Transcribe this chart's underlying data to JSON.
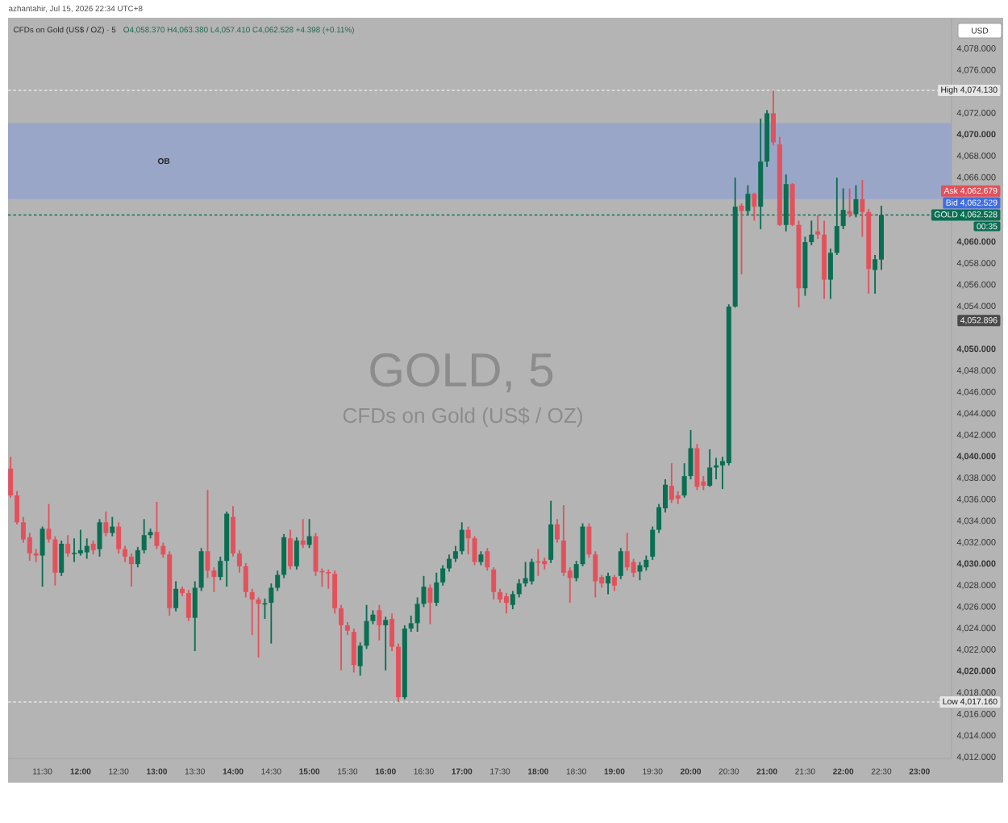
{
  "chart_data": {
    "type": "candlestick",
    "title": "CFDs on Gold (US$ / OZ) · 5",
    "subtitle": "O4,058.370 H4,063.380 L4,057.410 C4,062.528 +4.398 (+0.11%)",
    "ylabel": "USD",
    "annotations": [
      "azhantahir, Jul 15, 2026 22:34 UTC+8",
      "GOLD, 5",
      "CFDs on Gold (US$ / OZ)",
      "00:35",
      "Ask 4,062.679",
      "Bid 4,062.529",
      "4,052.896"
    ],
    "x": [
      11.0833,
      11.1667,
      11.25,
      11.3333,
      11.4167,
      11.5,
      11.5833,
      11.6667,
      11.75,
      11.8333,
      11.9167,
      12,
      12.0833,
      12.1667,
      12.25,
      12.3333,
      12.4167,
      12.5,
      12.5833,
      12.6667,
      12.75,
      12.8333,
      12.9167,
      13,
      13.0833,
      13.1667,
      13.25,
      13.3333,
      13.4167,
      13.5,
      13.5833,
      13.6667,
      13.75,
      13.8333,
      13.9167,
      14,
      14.0833,
      14.1667,
      14.25,
      14.3333,
      14.4167,
      14.5,
      14.5833,
      14.6667,
      14.75,
      14.8333,
      14.9167,
      15,
      15.0833,
      15.1667,
      15.25,
      15.3333,
      15.4167,
      15.5,
      15.5833,
      15.6667,
      15.75,
      15.8333,
      15.9167,
      16,
      16.0833,
      16.1667,
      16.25,
      16.3333,
      16.4167,
      16.5,
      16.5833,
      16.6667,
      16.75,
      16.8333,
      16.9167,
      17,
      17.0833,
      17.1667,
      17.25,
      17.3333,
      17.4167,
      17.5,
      17.5833,
      17.6667,
      17.75,
      17.8333,
      17.9167,
      18,
      18.0833,
      18.1667,
      18.25,
      18.3333,
      18.4167,
      18.5,
      18.5833,
      18.6667,
      18.75,
      18.8333,
      18.9167,
      19,
      19.0833,
      19.1667,
      19.25,
      19.3333,
      19.4167,
      19.5,
      19.5833,
      19.6667,
      19.75,
      19.8333,
      19.9167,
      20,
      20.0833,
      20.1667,
      20.25,
      20.3333,
      20.4167,
      20.5,
      20.5833,
      20.6667,
      20.75,
      20.8333,
      20.9167,
      21,
      21.0833,
      21.1667,
      21.25,
      21.3333,
      21.4167,
      21.5,
      21.5833,
      21.6667,
      21.75,
      21.8333,
      21.9167,
      22,
      22.0833,
      22.1667,
      22.25,
      22.3333,
      22.4167,
      22.5
    ],
    "ohlc": [
      [
        4038.9,
        4040.0,
        4036.2,
        4036.4
      ],
      [
        4036.4,
        4036.8,
        4033.7,
        4033.9
      ],
      [
        4033.9,
        4034.4,
        4032.0,
        4032.3
      ],
      [
        4032.5,
        4032.9,
        4030.3,
        4031.0
      ],
      [
        4031.0,
        4031.4,
        4030.2,
        4030.8
      ],
      [
        4030.8,
        4033.5,
        4027.9,
        4033.3
      ],
      [
        4033.3,
        4035.6,
        4032.0,
        4032.3
      ],
      [
        4032.3,
        4032.6,
        4028.0,
        4029.2
      ],
      [
        4029.2,
        4032.2,
        4028.9,
        4031.9
      ],
      [
        4031.9,
        4032.7,
        4030.7,
        4031.0
      ],
      [
        4031.0,
        4032.4,
        4030.2,
        4031.1
      ],
      [
        4031.0,
        4033.2,
        4030.8,
        4031.3
      ],
      [
        4031.1,
        4032.4,
        4030.5,
        4031.7
      ],
      [
        4031.9,
        4032.2,
        4030.9,
        4031.3
      ],
      [
        4031.4,
        4034.2,
        4030.7,
        4033.9
      ],
      [
        4033.9,
        4034.9,
        4032.6,
        4032.9
      ],
      [
        4032.9,
        4034.4,
        4032.6,
        4033.5
      ],
      [
        4033.5,
        4033.9,
        4031.0,
        4031.4
      ],
      [
        4031.4,
        4031.7,
        4030.2,
        4030.7
      ],
      [
        4030.7,
        4031.0,
        4027.9,
        4030.0
      ],
      [
        4030.0,
        4031.6,
        4029.7,
        4031.3
      ],
      [
        4031.3,
        4034.2,
        4031.0,
        4032.7
      ],
      [
        4032.7,
        4033.3,
        4032.4,
        4033.0
      ],
      [
        4033.0,
        4035.8,
        4031.4,
        4031.7
      ],
      [
        4031.7,
        4032.0,
        4030.6,
        4030.9
      ],
      [
        4030.9,
        4031.2,
        4025.2,
        4025.9
      ],
      [
        4025.9,
        4028.4,
        4025.6,
        4027.7
      ],
      [
        4027.7,
        4027.9,
        4027.0,
        4027.3
      ],
      [
        4027.3,
        4027.6,
        4024.7,
        4025.0
      ],
      [
        4025.0,
        4028.4,
        4021.9,
        4027.8
      ],
      [
        4027.8,
        4031.5,
        4027.5,
        4031.2
      ],
      [
        4031.2,
        4036.9,
        4028.7,
        4029.4
      ],
      [
        4029.4,
        4029.7,
        4027.4,
        4028.8
      ],
      [
        4028.8,
        4030.7,
        4028.5,
        4030.3
      ],
      [
        4030.3,
        4034.9,
        4027.9,
        4034.7
      ],
      [
        4034.4,
        4035.4,
        4030.7,
        4031.0
      ],
      [
        4031.0,
        4031.3,
        4029.2,
        4029.8
      ],
      [
        4029.8,
        4030.1,
        4026.9,
        4027.4
      ],
      [
        4027.4,
        4027.7,
        4023.4,
        4026.7
      ],
      [
        4026.7,
        4026.9,
        4021.3,
        4026.3
      ],
      [
        4026.3,
        4026.8,
        4024.9,
        4026.4
      ],
      [
        4026.4,
        4028.2,
        4022.6,
        4027.8
      ],
      [
        4027.8,
        4029.4,
        4027.5,
        4029.0
      ],
      [
        4029.0,
        4032.8,
        4028.7,
        4032.5
      ],
      [
        4032.4,
        4033.2,
        4029.5,
        4029.8
      ],
      [
        4029.8,
        4032.5,
        4029.5,
        4032.2
      ],
      [
        4032.2,
        4034.2,
        4031.5,
        4031.8
      ],
      [
        4031.8,
        4034.2,
        4031.5,
        4032.6
      ],
      [
        4032.6,
        4032.9,
        4028.9,
        4029.3
      ],
      [
        4029.3,
        4029.6,
        4027.9,
        4029.2
      ],
      [
        4029.2,
        4029.5,
        4027.7,
        4029.1
      ],
      [
        4029.1,
        4029.4,
        4025.4,
        4025.9
      ],
      [
        4025.9,
        4026.2,
        4020.1,
        4024.3
      ],
      [
        4024.3,
        4024.6,
        4023.4,
        4023.8
      ],
      [
        4023.7,
        4024.0,
        4019.9,
        4020.6
      ],
      [
        4020.5,
        4022.7,
        4019.6,
        4022.4
      ],
      [
        4022.4,
        4026.2,
        4022.1,
        4024.7
      ],
      [
        4024.7,
        4025.7,
        4024.4,
        4025.3
      ],
      [
        4025.7,
        4026.2,
        4022.9,
        4024.3
      ],
      [
        4024.3,
        4025.1,
        4020.1,
        4024.8
      ],
      [
        4024.9,
        4025.4,
        4021.9,
        4022.3
      ],
      [
        4022.3,
        4022.6,
        4017.16,
        4017.6
      ],
      [
        4017.6,
        4024.3,
        4017.4,
        4024.0
      ],
      [
        4024.0,
        4025.2,
        4023.7,
        4024.5
      ],
      [
        4024.5,
        4026.9,
        4023.7,
        4026.3
      ],
      [
        4026.3,
        4028.9,
        4026.0,
        4027.9
      ],
      [
        4027.8,
        4028.1,
        4024.4,
        4026.4
      ],
      [
        4026.4,
        4029.2,
        4026.1,
        4028.3
      ],
      [
        4028.3,
        4029.9,
        4028.0,
        4029.6
      ],
      [
        4029.6,
        4030.9,
        4029.3,
        4030.5
      ],
      [
        4030.5,
        4031.7,
        4030.2,
        4031.2
      ],
      [
        4031.2,
        4033.9,
        4030.9,
        4033.2
      ],
      [
        4033.2,
        4033.5,
        4030.9,
        4032.4
      ],
      [
        4032.4,
        4032.6,
        4029.9,
        4030.2
      ],
      [
        4030.2,
        4031.2,
        4029.9,
        4030.9
      ],
      [
        4031.2,
        4031.5,
        4029.4,
        4029.7
      ],
      [
        4029.5,
        4029.7,
        4026.7,
        4027.4
      ],
      [
        4027.4,
        4027.7,
        4026.4,
        4026.7
      ],
      [
        4027.0,
        4027.3,
        4025.4,
        4026.4
      ],
      [
        4026.2,
        4027.5,
        4025.8,
        4027.2
      ],
      [
        4027.2,
        4028.6,
        4026.9,
        4028.2
      ],
      [
        4028.2,
        4030.2,
        4027.9,
        4028.7
      ],
      [
        4028.4,
        4030.5,
        4028.1,
        4030.2
      ],
      [
        4030.2,
        4031.4,
        4028.9,
        4030.1
      ],
      [
        4030.3,
        4030.6,
        4029.5,
        4030.0
      ],
      [
        4030.4,
        4035.9,
        4030.1,
        4033.7
      ],
      [
        4033.7,
        4034.2,
        4032.0,
        4032.3
      ],
      [
        4032.2,
        4035.5,
        4028.9,
        4029.2
      ],
      [
        4029.4,
        4029.7,
        4026.4,
        4028.7
      ],
      [
        4028.7,
        4030.3,
        4028.4,
        4030.0
      ],
      [
        4030.0,
        4033.8,
        4029.8,
        4033.5
      ],
      [
        4033.5,
        4033.8,
        4030.6,
        4030.9
      ],
      [
        4030.9,
        4031.2,
        4026.9,
        4028.4
      ],
      [
        4028.8,
        4029.0,
        4027.8,
        4028.2
      ],
      [
        4028.2,
        4029.2,
        4027.2,
        4028.9
      ],
      [
        4028.8,
        4029.0,
        4027.5,
        4028.0
      ],
      [
        4028.9,
        4031.5,
        4028.6,
        4031.2
      ],
      [
        4031.2,
        4032.9,
        4029.4,
        4029.7
      ],
      [
        4030.2,
        4030.5,
        4028.8,
        4029.2
      ],
      [
        4029.3,
        4030.2,
        4028.5,
        4029.9
      ],
      [
        4029.7,
        4030.8,
        4029.4,
        4030.4
      ],
      [
        4030.7,
        4033.5,
        4030.4,
        4033.2
      ],
      [
        4033.2,
        4035.6,
        4032.9,
        4035.3
      ],
      [
        4035.2,
        4037.9,
        4034.8,
        4037.4
      ],
      [
        4037.3,
        4039.4,
        4035.7,
        4036.0
      ],
      [
        4036.4,
        4036.8,
        4035.6,
        4036.1
      ],
      [
        4036.4,
        4039.4,
        4036.2,
        4038.2
      ],
      [
        4038.2,
        4042.5,
        4037.9,
        4040.8
      ],
      [
        4040.8,
        4041.2,
        4036.9,
        4037.2
      ],
      [
        4037.7,
        4038.2,
        4036.9,
        4037.3
      ],
      [
        4037.3,
        4040.7,
        4037.2,
        4039.0
      ],
      [
        4039.0,
        4039.9,
        4037.9,
        4039.2
      ],
      [
        4039.2,
        4040.0,
        4037.0,
        4039.6
      ],
      [
        4039.4,
        4054.2,
        4039.2,
        4054.0
      ],
      [
        4054.0,
        4066.0,
        4053.9,
        4063.3
      ],
      [
        4063.4,
        4063.6,
        4057.0,
        4062.9
      ],
      [
        4062.9,
        4065.3,
        4062.5,
        4064.5
      ],
      [
        4064.5,
        4064.6,
        4062.0,
        4063.3
      ],
      [
        4063.3,
        4071.5,
        4061.2,
        4067.5
      ],
      [
        4067.5,
        4072.3,
        4067.0,
        4072.0
      ],
      [
        4072.0,
        4074.13,
        4069.0,
        4069.3
      ],
      [
        4069.1,
        4069.8,
        4061.5,
        4061.6
      ],
      [
        4061.6,
        4066.3,
        4061.0,
        4065.4
      ],
      [
        4065.4,
        4065.5,
        4061.5,
        4061.6
      ],
      [
        4061.6,
        4062.0,
        4053.9,
        4055.7
      ],
      [
        4055.7,
        4060.5,
        4055.0,
        4060.0
      ],
      [
        4060.0,
        4062.0,
        4059.7,
        4060.7
      ],
      [
        4061.0,
        4062.5,
        4060.3,
        4060.7
      ],
      [
        4060.7,
        4062.0,
        4054.7,
        4056.5
      ],
      [
        4056.5,
        4059.4,
        4054.7,
        4059.0
      ],
      [
        4059.0,
        4066.0,
        4058.8,
        4061.5
      ],
      [
        4061.5,
        4065.0,
        4061.2,
        4063.0
      ],
      [
        4062.9,
        4065.0,
        4062.3,
        4062.6
      ],
      [
        4062.6,
        4065.3,
        4062.3,
        4064.0
      ],
      [
        4064.0,
        4065.8,
        4060.5,
        4062.8
      ],
      [
        4062.8,
        4063.1,
        4055.2,
        4057.5
      ],
      [
        4057.4,
        4058.8,
        4055.2,
        4058.4
      ],
      [
        4058.37,
        4063.38,
        4057.41,
        4062.528
      ]
    ],
    "xlim": [
      11.05,
      23.42
    ],
    "xticks": [
      {
        "value": 11.5,
        "label": "11:30"
      },
      {
        "value": 12,
        "label": "12:00"
      },
      {
        "value": 12.5,
        "label": "12:30"
      },
      {
        "value": 13,
        "label": "13:00"
      },
      {
        "value": 13.5,
        "label": "13:30"
      },
      {
        "value": 14,
        "label": "14:00"
      },
      {
        "value": 14.5,
        "label": "14:30"
      },
      {
        "value": 15,
        "label": "15:00"
      },
      {
        "value": 15.5,
        "label": "15:30"
      },
      {
        "value": 16,
        "label": "16:00"
      },
      {
        "value": 16.5,
        "label": "16:30"
      },
      {
        "value": 17,
        "label": "17:00"
      },
      {
        "value": 17.5,
        "label": "17:30"
      },
      {
        "value": 18,
        "label": "18:00"
      },
      {
        "value": 18.5,
        "label": "18:30"
      },
      {
        "value": 19,
        "label": "19:00"
      },
      {
        "value": 19.5,
        "label": "19:30"
      },
      {
        "value": 20,
        "label": "20:00"
      },
      {
        "value": 20.5,
        "label": "20:30"
      },
      {
        "value": 21,
        "label": "21:00"
      },
      {
        "value": 21.5,
        "label": "21:30"
      },
      {
        "value": 22,
        "label": "22:00"
      },
      {
        "value": 22.5,
        "label": "22:30"
      },
      {
        "value": 23,
        "label": "23:00"
      }
    ],
    "ylim": [
      4011.9,
      4080.9
    ],
    "yticks": [
      {
        "value": 4012,
        "label": "4,012.000"
      },
      {
        "value": 4014,
        "label": "4,014.000"
      },
      {
        "value": 4016,
        "label": "4,016.000"
      },
      {
        "value": 4018,
        "label": "4,018.000"
      },
      {
        "value": 4020,
        "label": "4,020.000"
      },
      {
        "value": 4022,
        "label": "4,022.000"
      },
      {
        "value": 4024,
        "label": "4,024.000"
      },
      {
        "value": 4026,
        "label": "4,026.000"
      },
      {
        "value": 4028,
        "label": "4,028.000"
      },
      {
        "value": 4030,
        "label": "4,030.000"
      },
      {
        "value": 4032,
        "label": "4,032.000"
      },
      {
        "value": 4034,
        "label": "4,034.000"
      },
      {
        "value": 4036,
        "label": "4,036.000"
      },
      {
        "value": 4038,
        "label": "4,038.000"
      },
      {
        "value": 4040,
        "label": "4,040.000"
      },
      {
        "value": 4042,
        "label": "4,042.000"
      },
      {
        "value": 4044,
        "label": "4,044.000"
      },
      {
        "value": 4046,
        "label": "4,046.000"
      },
      {
        "value": 4048,
        "label": "4,048.000"
      },
      {
        "value": 4050,
        "label": "4,050.000"
      },
      {
        "value": 4054,
        "label": "4,054.000"
      },
      {
        "value": 4056,
        "label": "4,056.000"
      },
      {
        "value": 4058,
        "label": "4,058.000"
      },
      {
        "value": 4060,
        "label": "4,060.000"
      },
      {
        "value": 4066,
        "label": "4,066.000"
      },
      {
        "value": 4068,
        "label": "4,068.000"
      },
      {
        "value": 4070,
        "label": "4,070.000"
      },
      {
        "value": 4072,
        "label": "4,072.000"
      },
      {
        "value": 4076,
        "label": "4,076.000"
      },
      {
        "value": 4078,
        "label": "4,078.000"
      }
    ],
    "bands": [
      {
        "axis": "y",
        "from": 4064.0,
        "to": 4071.1,
        "label": "OB",
        "color": "#9aa6c8"
      }
    ],
    "ref_lines": [
      {
        "axis": "y",
        "value": 4074.13,
        "label": "High 4,074.130",
        "color": "#e6e6e6",
        "line_style": "dotted"
      },
      {
        "axis": "y",
        "value": 4062.528,
        "label": "GOLD 4,062.528",
        "color": "#0a6e52",
        "line_style": "dotted"
      },
      {
        "axis": "y",
        "value": 4017.16,
        "label": "Low 4,017.160",
        "color": "#e6e6e6",
        "line_style": "dotted"
      }
    ]
  }
}
